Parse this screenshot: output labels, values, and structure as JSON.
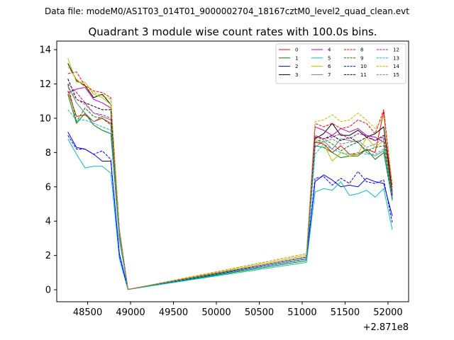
{
  "suptitle": "Data file: modeM0/AS1T03_014T01_9000002704_18167cztM0_level2_quad_clean.evt",
  "chart_data": {
    "type": "line",
    "title": "Quadrant 3 module wise count rates with 100.0s bins.",
    "xlabel": "",
    "ylabel": "",
    "x_offset_label": "+2.871e8",
    "xlim": [
      48140,
      52240
    ],
    "ylim": [
      -0.7,
      14.5
    ],
    "xticks": [
      48500,
      49000,
      49500,
      50000,
      50500,
      51000,
      51500,
      52000
    ],
    "xtick_labels": [
      "48500",
      "49000",
      "49500",
      "50000",
      "50500",
      "51000",
      "51500",
      "52000"
    ],
    "yticks": [
      0,
      2,
      4,
      6,
      8,
      10,
      12,
      14
    ],
    "ytick_labels": [
      "0",
      "2",
      "4",
      "6",
      "8",
      "10",
      "12",
      "14"
    ],
    "legend_position": "upper-right",
    "legend_columns": 4,
    "x": [
      48270,
      48370,
      48470,
      48570,
      48670,
      48770,
      48870,
      48970,
      51050,
      51150,
      51250,
      51350,
      51450,
      51550,
      51650,
      51750,
      51850,
      51950,
      52050
    ],
    "series": [
      {
        "name": "0",
        "color": "#ff0000",
        "dash": "solid",
        "values": [
          11.6,
          10.1,
          10.2,
          9.8,
          10.0,
          9.7,
          3.3,
          0.02,
          1.8,
          8.6,
          8.5,
          8.0,
          8.4,
          7.9,
          7.9,
          8.2,
          8.0,
          10.4,
          5.5
        ]
      },
      {
        "name": "1",
        "color": "#008000",
        "dash": "solid",
        "values": [
          11.4,
          9.7,
          10.3,
          9.6,
          9.3,
          9.1,
          3.0,
          0.02,
          1.7,
          8.4,
          8.3,
          8.0,
          7.7,
          7.8,
          7.8,
          8.2,
          7.6,
          8.0,
          5.2
        ]
      },
      {
        "name": "2",
        "color": "#0000ff",
        "dash": "solid",
        "values": [
          9.2,
          8.3,
          8.2,
          7.9,
          7.5,
          7.5,
          2.1,
          0.02,
          1.8,
          6.3,
          6.7,
          6.4,
          6.0,
          6.1,
          6.0,
          6.5,
          6.3,
          6.2,
          4.3
        ]
      },
      {
        "name": "3",
        "color": "#000000",
        "dash": "solid",
        "values": [
          13.2,
          12.2,
          11.9,
          11.2,
          11.4,
          10.8,
          3.5,
          0.02,
          1.9,
          8.8,
          9.1,
          9.7,
          9.0,
          9.0,
          9.3,
          8.9,
          9.1,
          9.5,
          5.7
        ]
      },
      {
        "name": "4",
        "color": "#bf00bf",
        "dash": "solid",
        "values": [
          11.5,
          11.7,
          11.8,
          11.1,
          10.9,
          10.6,
          3.4,
          0.02,
          1.9,
          9.5,
          9.3,
          9.0,
          9.4,
          9.2,
          9.4,
          9.0,
          8.9,
          8.6,
          5.6
        ]
      },
      {
        "name": "5",
        "color": "#00bfbf",
        "dash": "solid",
        "values": [
          8.8,
          7.9,
          7.1,
          7.2,
          7.2,
          6.8,
          1.8,
          0.02,
          1.6,
          5.7,
          5.9,
          5.8,
          6.3,
          5.5,
          5.6,
          5.8,
          5.4,
          5.9,
          3.5
        ]
      },
      {
        "name": "6",
        "color": "#bfbf00",
        "dash": "solid",
        "values": [
          13.5,
          12.1,
          12.1,
          11.4,
          11.2,
          10.8,
          3.4,
          0.02,
          2.0,
          8.8,
          8.5,
          7.5,
          8.0,
          7.8,
          7.9,
          8.9,
          8.3,
          8.7,
          5.3
        ]
      },
      {
        "name": "7",
        "color": "#808080",
        "dash": "solid",
        "values": [
          11.9,
          10.9,
          10.3,
          9.8,
          10.1,
          9.9,
          3.1,
          0.02,
          1.9,
          8.3,
          8.7,
          8.2,
          8.8,
          8.7,
          8.6,
          8.0,
          7.8,
          8.1,
          5.4
        ]
      },
      {
        "name": "8",
        "color": "#ff0000",
        "dash": "dashed",
        "values": [
          12.6,
          12.7,
          11.9,
          11.6,
          11.5,
          11.2,
          3.4,
          0.02,
          2.1,
          9.7,
          9.5,
          9.7,
          9.4,
          9.5,
          9.9,
          9.7,
          9.1,
          10.5,
          6.0
        ]
      },
      {
        "name": "9",
        "color": "#008000",
        "dash": "dashed",
        "values": [
          12.0,
          9.8,
          10.6,
          10.1,
          10.0,
          9.6,
          3.2,
          0.02,
          1.9,
          8.6,
          8.8,
          8.5,
          8.1,
          8.4,
          8.6,
          8.1,
          8.3,
          8.4,
          5.3
        ]
      },
      {
        "name": "10",
        "color": "#0000ff",
        "dash": "dashed",
        "values": [
          9.0,
          8.2,
          8.2,
          7.9,
          8.1,
          7.6,
          2.0,
          0.02,
          1.8,
          6.5,
          6.6,
          6.1,
          6.5,
          6.2,
          6.9,
          6.3,
          6.2,
          6.4,
          3.9
        ]
      },
      {
        "name": "11",
        "color": "#000000",
        "dash": "dashed",
        "values": [
          12.3,
          11.1,
          10.9,
          10.7,
          10.5,
          10.5,
          3.3,
          0.02,
          1.9,
          8.9,
          8.8,
          9.0,
          8.7,
          8.9,
          8.6,
          8.9,
          8.7,
          9.0,
          5.5
        ]
      },
      {
        "name": "12",
        "color": "#bf00bf",
        "dash": "dashed",
        "values": [
          12.0,
          11.5,
          10.9,
          10.3,
          10.2,
          10.0,
          3.2,
          0.02,
          1.9,
          9.0,
          8.8,
          8.9,
          9.1,
          8.8,
          9.1,
          9.0,
          8.7,
          8.9,
          5.4
        ]
      },
      {
        "name": "13",
        "color": "#00bfbf",
        "dash": "dashed",
        "values": [
          10.5,
          9.9,
          9.9,
          9.7,
          9.5,
          9.3,
          2.9,
          0.02,
          1.8,
          7.9,
          8.5,
          8.2,
          8.0,
          7.9,
          8.0,
          7.9,
          7.9,
          8.2,
          5.2
        ]
      },
      {
        "name": "14",
        "color": "#bfbf00",
        "dash": "dashed",
        "values": [
          13.0,
          12.3,
          11.8,
          11.5,
          11.3,
          11.1,
          3.4,
          0.02,
          2.1,
          9.8,
          9.9,
          10.2,
          9.8,
          9.9,
          10.3,
          9.9,
          9.4,
          10.1,
          6.2
        ]
      },
      {
        "name": "15",
        "color": "#808080",
        "dash": "dashed",
        "values": [
          11.8,
          11.1,
          10.8,
          10.3,
          10.1,
          9.9,
          3.2,
          0.02,
          1.9,
          8.6,
          8.6,
          8.8,
          8.5,
          8.6,
          8.7,
          8.3,
          8.5,
          8.8,
          5.6
        ]
      }
    ]
  }
}
